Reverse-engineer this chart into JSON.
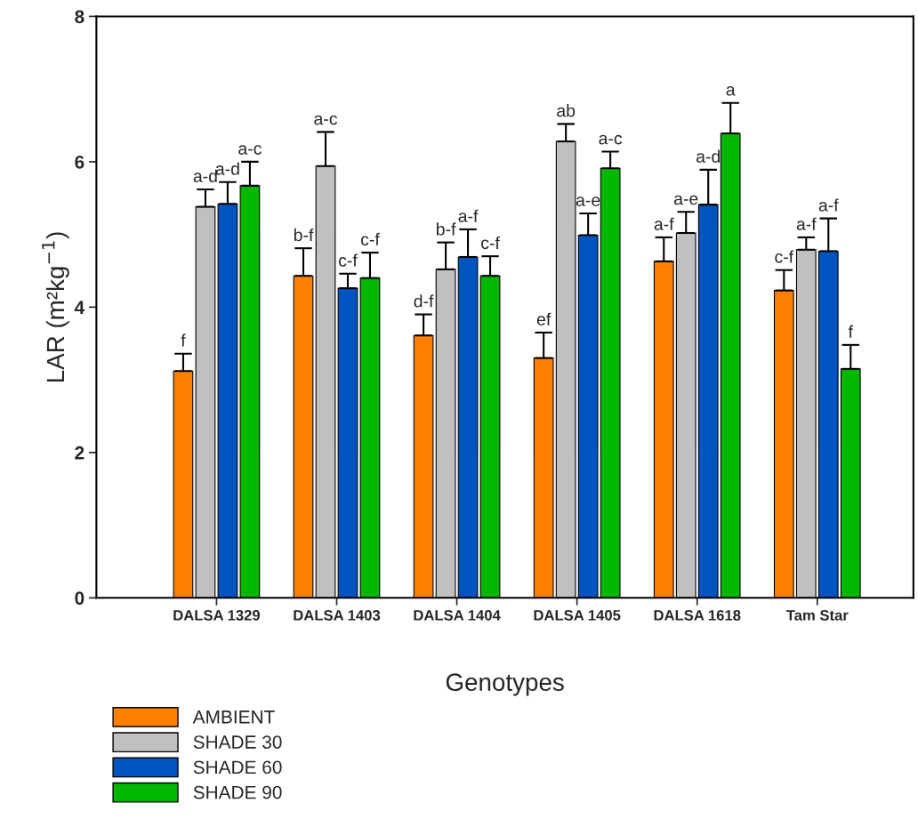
{
  "chart_data": {
    "type": "bar",
    "xlabel": "Genotypes",
    "ylabel": "LAR (m²kg$^{−1}$)",
    "categories": [
      "DALSA 1329",
      "DALSA 1403",
      "DALSA 1404",
      "DALSA 1405",
      "DALSA 1618",
      "Tam Star"
    ],
    "ylim": [
      0,
      8
    ],
    "yticks": [
      0,
      2,
      4,
      6,
      8
    ],
    "grid": false,
    "legend": "bottom left",
    "series": [
      {
        "name": "AMBIENT",
        "color": "#ff8000",
        "values": [
          3.12,
          4.43,
          3.61,
          3.3,
          4.63,
          4.23
        ],
        "errors": [
          0.24,
          0.38,
          0.29,
          0.35,
          0.33,
          0.28
        ],
        "value_labels": [
          "f",
          "b-f",
          "d-f",
          "ef",
          "a-f",
          "c-f"
        ]
      },
      {
        "name": "SHADE 30",
        "color": "#c0c0c0",
        "values": [
          5.38,
          5.94,
          4.52,
          6.28,
          5.02,
          4.79
        ],
        "errors": [
          0.24,
          0.47,
          0.37,
          0.24,
          0.29,
          0.17
        ],
        "value_labels": [
          "a-d",
          "a-c",
          "b-f",
          "ab",
          "a-e",
          "a-f"
        ]
      },
      {
        "name": "SHADE 60",
        "color": "#0054c0",
        "values": [
          5.42,
          4.26,
          4.69,
          4.99,
          5.41,
          4.77
        ],
        "errors": [
          0.3,
          0.2,
          0.38,
          0.3,
          0.48,
          0.45
        ],
        "value_labels": [
          "a-d",
          "c-f",
          "a-f",
          "a-e",
          "a-d",
          "a-f"
        ]
      },
      {
        "name": "SHADE 90",
        "color": "#00b800",
        "values": [
          5.67,
          4.4,
          4.43,
          5.91,
          6.39,
          3.15
        ],
        "errors": [
          0.33,
          0.35,
          0.27,
          0.23,
          0.42,
          0.33
        ],
        "value_labels": [
          "a-c",
          "c-f",
          "c-f",
          "a-c",
          "a",
          "f"
        ]
      }
    ]
  }
}
